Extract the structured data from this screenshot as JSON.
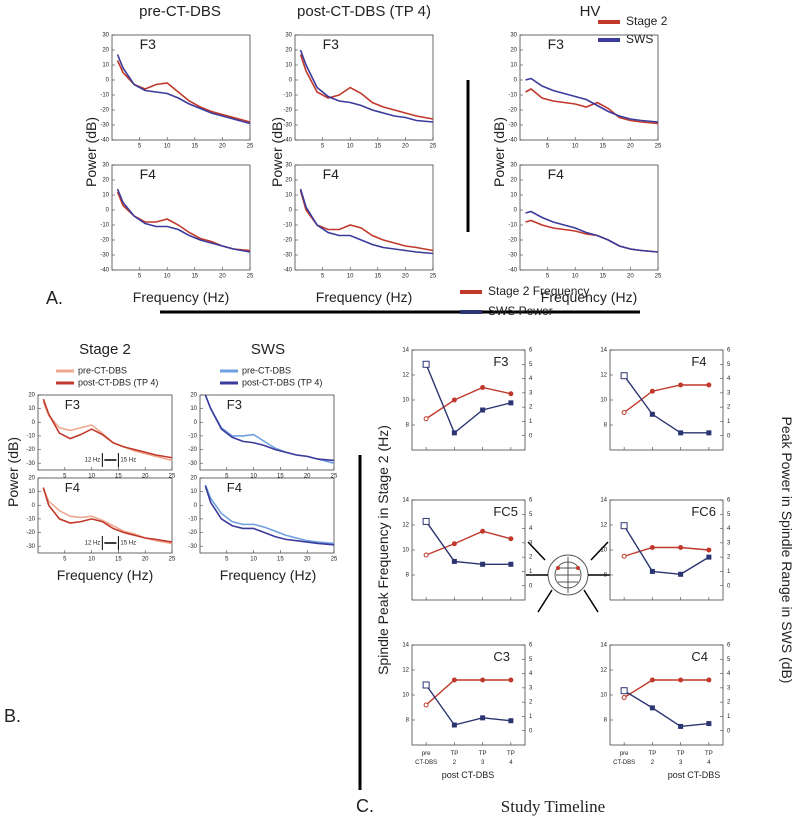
{
  "figure": {
    "panel_a": {
      "label": "A.",
      "headers": [
        "pre-CT-DBS",
        "post-CT-DBS (TP 4)",
        "HV"
      ],
      "ylabel": "Power (dB)",
      "xlabel": "Frequency (Hz)"
    },
    "panel_b": {
      "label": "B.",
      "headers": [
        "Stage 2",
        "SWS"
      ],
      "ylabel": "Power (dB)",
      "xlabel": "Frequency (Hz)"
    },
    "panel_c": {
      "label": "C.",
      "ylabel": "Spindle Peak Frequency in Stage 2 (Hz)",
      "y2label": "Peak Power in Spindle Range in SWS (dB)",
      "xlabel": "Study Timeline",
      "sublabel": "post CT-DBS"
    }
  },
  "chart_data": [
    {
      "type": "line",
      "title": "F3",
      "x": [
        1,
        2,
        4,
        6,
        8,
        10,
        12,
        14,
        16,
        18,
        20,
        22,
        25
      ],
      "xlim": [
        0,
        25
      ],
      "xticks": [
        5,
        10,
        15,
        20,
        25
      ],
      "ylim": [
        -40,
        30
      ],
      "yticks": [
        -40,
        -30,
        -20,
        -10,
        0,
        10,
        20,
        30
      ],
      "series": [
        {
          "name": "Stage 2",
          "color": "#c0392b",
          "values": [
            13,
            5,
            -3,
            -6,
            -3,
            -2,
            -8,
            -14,
            -18,
            -21,
            -23,
            -25,
            -28
          ]
        },
        {
          "name": "SWS",
          "color": "#3b3b9b",
          "values": [
            17,
            8,
            -3,
            -7,
            -8,
            -9,
            -12,
            -16,
            -19,
            -22,
            -24,
            -26,
            -29
          ]
        }
      ]
    },
    {
      "type": "line",
      "title": "F3",
      "x": [
        1,
        2,
        4,
        6,
        8,
        10,
        12,
        14,
        16,
        18,
        20,
        22,
        25
      ],
      "xlim": [
        0,
        25
      ],
      "xticks": [
        5,
        10,
        15,
        20,
        25
      ],
      "ylim": [
        -40,
        30
      ],
      "yticks": [
        -40,
        -30,
        -20,
        -10,
        0,
        10,
        20,
        30
      ],
      "series": [
        {
          "name": "Stage 2",
          "color": "#c0392b",
          "values": [
            17,
            6,
            -8,
            -12,
            -10,
            -5,
            -9,
            -15,
            -18,
            -20,
            -22,
            -24,
            -26
          ]
        },
        {
          "name": "SWS",
          "color": "#3b3b9b",
          "values": [
            20,
            10,
            -5,
            -11,
            -14,
            -15,
            -17,
            -20,
            -22,
            -24,
            -25,
            -27,
            -28
          ]
        }
      ]
    },
    {
      "type": "line",
      "title": "F3",
      "x": [
        1,
        2,
        4,
        6,
        8,
        10,
        12,
        14,
        16,
        18,
        20,
        22,
        25
      ],
      "xlim": [
        0,
        25
      ],
      "xticks": [
        5,
        10,
        15,
        20,
        25
      ],
      "ylim": [
        -40,
        30
      ],
      "yticks": [
        -40,
        -30,
        -20,
        -10,
        0,
        10,
        20,
        30
      ],
      "series": [
        {
          "name": "Stage 2",
          "color": "#c0392b",
          "values": [
            -8,
            -6,
            -12,
            -14,
            -15,
            -16,
            -18,
            -15,
            -19,
            -25,
            -27,
            -28,
            -29
          ]
        },
        {
          "name": "SWS",
          "color": "#3b3b9b",
          "values": [
            0,
            1,
            -4,
            -7,
            -9,
            -11,
            -13,
            -17,
            -21,
            -24,
            -26,
            -27,
            -28
          ]
        }
      ]
    },
    {
      "type": "line",
      "title": "F4",
      "x": [
        1,
        2,
        4,
        6,
        8,
        10,
        12,
        14,
        16,
        18,
        20,
        22,
        25
      ],
      "xlim": [
        0,
        25
      ],
      "xticks": [
        5,
        10,
        15,
        20,
        25
      ],
      "ylim": [
        -40,
        30
      ],
      "yticks": [
        -40,
        -30,
        -20,
        -10,
        0,
        10,
        20,
        30
      ],
      "series": [
        {
          "name": "Stage 2",
          "color": "#c0392b",
          "values": [
            12,
            3,
            -4,
            -8,
            -8,
            -6,
            -10,
            -15,
            -19,
            -21,
            -24,
            -26,
            -27
          ]
        },
        {
          "name": "SWS",
          "color": "#3b3b9b",
          "values": [
            14,
            5,
            -4,
            -9,
            -11,
            -11,
            -13,
            -17,
            -20,
            -22,
            -24,
            -26,
            -28
          ]
        }
      ]
    },
    {
      "type": "line",
      "title": "F4",
      "x": [
        1,
        2,
        4,
        6,
        8,
        10,
        12,
        14,
        16,
        18,
        20,
        22,
        25
      ],
      "xlim": [
        0,
        25
      ],
      "xticks": [
        5,
        10,
        15,
        20,
        25
      ],
      "ylim": [
        -40,
        30
      ],
      "yticks": [
        -40,
        -30,
        -20,
        -10,
        0,
        10,
        20,
        30
      ],
      "series": [
        {
          "name": "Stage 2",
          "color": "#c0392b",
          "values": [
            13,
            0,
            -10,
            -13,
            -13,
            -10,
            -12,
            -17,
            -20,
            -22,
            -24,
            -25,
            -27
          ]
        },
        {
          "name": "SWS",
          "color": "#3b3b9b",
          "values": [
            14,
            2,
            -10,
            -15,
            -17,
            -17,
            -20,
            -23,
            -25,
            -26,
            -27,
            -28,
            -29
          ]
        }
      ]
    },
    {
      "type": "line",
      "title": "F4",
      "x": [
        1,
        2,
        4,
        6,
        8,
        10,
        12,
        14,
        16,
        18,
        20,
        22,
        25
      ],
      "xlim": [
        0,
        25
      ],
      "xticks": [
        5,
        10,
        15,
        20,
        25
      ],
      "ylim": [
        -40,
        30
      ],
      "yticks": [
        -40,
        -30,
        -20,
        -10,
        0,
        10,
        20,
        30
      ],
      "series": [
        {
          "name": "Stage 2",
          "color": "#c0392b",
          "values": [
            -8,
            -7,
            -10,
            -12,
            -13,
            -14,
            -16,
            -17,
            -20,
            -24,
            -26,
            -27,
            -28
          ]
        },
        {
          "name": "SWS",
          "color": "#3b3b9b",
          "values": [
            -2,
            -1,
            -5,
            -8,
            -10,
            -12,
            -15,
            -17,
            -20,
            -24,
            -26,
            -27,
            -28
          ]
        }
      ]
    },
    {
      "type": "line",
      "title": "F3",
      "x": [
        1,
        2,
        4,
        6,
        8,
        10,
        12,
        14,
        16,
        18,
        20,
        22,
        25
      ],
      "xlim": [
        0,
        25
      ],
      "xticks": [
        5,
        10,
        15,
        20,
        25
      ],
      "ylim": [
        -35,
        20
      ],
      "yticks": [
        -30,
        -20,
        -10,
        0,
        10,
        20
      ],
      "annotations": [
        "12 Hz",
        "15 Hz"
      ],
      "series": [
        {
          "name": "pre-CT-DBS",
          "color": "#f0a890",
          "values": [
            15,
            5,
            -4,
            -6,
            -4,
            -2,
            -8,
            -15,
            -18,
            -21,
            -23,
            -25,
            -28
          ]
        },
        {
          "name": "post-CT-DBS (TP 4)",
          "color": "#c0392b",
          "values": [
            17,
            6,
            -8,
            -12,
            -9,
            -5,
            -9,
            -15,
            -18,
            -20,
            -22,
            -24,
            -26
          ]
        }
      ]
    },
    {
      "type": "line",
      "title": "F3",
      "x": [
        1,
        2,
        4,
        6,
        8,
        10,
        12,
        14,
        16,
        18,
        20,
        22,
        25
      ],
      "xlim": [
        0,
        25
      ],
      "xticks": [
        5,
        10,
        15,
        20,
        25
      ],
      "ylim": [
        -35,
        20
      ],
      "yticks": [
        -30,
        -20,
        -10,
        0,
        10,
        20
      ],
      "series": [
        {
          "name": "pre-CT-DBS",
          "color": "#6fa0e0",
          "values": [
            20,
            10,
            -4,
            -10,
            -10,
            -9,
            -14,
            -19,
            -22,
            -24,
            -25,
            -27,
            -30
          ]
        },
        {
          "name": "post-CT-DBS (TP 4)",
          "color": "#3b3b9b",
          "values": [
            20,
            10,
            -5,
            -11,
            -14,
            -15,
            -17,
            -20,
            -22,
            -24,
            -25,
            -27,
            -28
          ]
        }
      ]
    },
    {
      "type": "line",
      "title": "F4",
      "x": [
        1,
        2,
        4,
        6,
        8,
        10,
        12,
        14,
        16,
        18,
        20,
        22,
        25
      ],
      "xlim": [
        0,
        25
      ],
      "xticks": [
        5,
        10,
        15,
        20,
        25
      ],
      "ylim": [
        -35,
        20
      ],
      "yticks": [
        -30,
        -20,
        -10,
        0,
        10,
        20
      ],
      "annotations": [
        "12 Hz",
        "15 Hz"
      ],
      "series": [
        {
          "name": "pre-CT-DBS",
          "color": "#f0a890",
          "values": [
            12,
            3,
            -4,
            -8,
            -9,
            -8,
            -11,
            -15,
            -19,
            -21,
            -24,
            -26,
            -28
          ]
        },
        {
          "name": "post-CT-DBS (TP 4)",
          "color": "#c0392b",
          "values": [
            13,
            0,
            -10,
            -13,
            -12,
            -10,
            -12,
            -17,
            -20,
            -22,
            -24,
            -25,
            -27
          ]
        }
      ]
    },
    {
      "type": "line",
      "title": "F4",
      "x": [
        1,
        2,
        4,
        6,
        8,
        10,
        12,
        14,
        16,
        18,
        20,
        22,
        25
      ],
      "xlim": [
        0,
        25
      ],
      "xticks": [
        5,
        10,
        15,
        20,
        25
      ],
      "ylim": [
        -35,
        20
      ],
      "yticks": [
        -30,
        -20,
        -10,
        0,
        10,
        20
      ],
      "series": [
        {
          "name": "pre-CT-DBS",
          "color": "#6fa0e0",
          "values": [
            15,
            5,
            -6,
            -12,
            -14,
            -14,
            -16,
            -19,
            -22,
            -24,
            -26,
            -27,
            -28
          ]
        },
        {
          "name": "post-CT-DBS (TP 4)",
          "color": "#3b3b9b",
          "values": [
            14,
            2,
            -10,
            -15,
            -17,
            -17,
            -20,
            -23,
            -25,
            -26,
            -27,
            -28,
            -29
          ]
        }
      ]
    },
    {
      "type": "timeline",
      "title": "F3",
      "categories": [
        null,
        null,
        null,
        null
      ],
      "ylim": [
        6,
        14
      ],
      "yticks": [
        8,
        10,
        12,
        14
      ],
      "y2lim": [
        -1,
        6
      ],
      "y2ticks": [
        0,
        1,
        2,
        3,
        4,
        5,
        6
      ],
      "series": [
        {
          "name": "Stage 2 Frequency",
          "color": "#c0392b",
          "values": [
            8.5,
            10,
            11,
            10.5
          ]
        },
        {
          "name": "SWS Power",
          "color": "#2b3570",
          "axis": "y2",
          "values": [
            5,
            0.2,
            1.8,
            2.3
          ]
        }
      ]
    },
    {
      "type": "timeline",
      "title": "F4",
      "categories": [
        null,
        null,
        null,
        null
      ],
      "ylim": [
        6,
        14
      ],
      "yticks": [
        8,
        10,
        12,
        14
      ],
      "y2lim": [
        -1,
        6
      ],
      "y2ticks": [
        0,
        1,
        2,
        3,
        4,
        5,
        6
      ],
      "series": [
        {
          "name": "Stage 2 Frequency",
          "color": "#c0392b",
          "values": [
            9,
            10.7,
            11.2,
            11.2
          ]
        },
        {
          "name": "SWS Power",
          "color": "#2b3570",
          "axis": "y2",
          "values": [
            4.2,
            1.5,
            0.2,
            0.2
          ]
        }
      ]
    },
    {
      "type": "timeline",
      "title": "FC5",
      "categories": [
        null,
        null,
        null,
        null
      ],
      "ylim": [
        6,
        14
      ],
      "yticks": [
        8,
        10,
        12,
        14
      ],
      "y2lim": [
        -1,
        6
      ],
      "y2ticks": [
        0,
        1,
        2,
        3,
        4,
        5,
        6
      ],
      "series": [
        {
          "name": "Stage 2 Frequency",
          "color": "#c0392b",
          "values": [
            9.6,
            10.5,
            11.5,
            10.9
          ]
        },
        {
          "name": "SWS Power",
          "color": "#2b3570",
          "axis": "y2",
          "values": [
            4.5,
            1.7,
            1.5,
            1.5
          ]
        }
      ]
    },
    {
      "type": "timeline",
      "title": "FC6",
      "categories": [
        null,
        null,
        null,
        null
      ],
      "ylim": [
        6,
        14
      ],
      "yticks": [
        8,
        10,
        12,
        14
      ],
      "y2lim": [
        -1,
        6
      ],
      "y2ticks": [
        0,
        1,
        2,
        3,
        4,
        5,
        6
      ],
      "series": [
        {
          "name": "Stage 2 Frequency",
          "color": "#c0392b",
          "values": [
            9.5,
            10.2,
            10.2,
            10
          ]
        },
        {
          "name": "SWS Power",
          "color": "#2b3570",
          "axis": "y2",
          "values": [
            4.2,
            1,
            0.8,
            2
          ]
        }
      ]
    },
    {
      "type": "timeline",
      "title": "C3",
      "categories": [
        "pre CT-DBS",
        "TP 2",
        "TP 3",
        "TP 4"
      ],
      "ylim": [
        6,
        14
      ],
      "yticks": [
        8,
        10,
        12,
        14
      ],
      "y2lim": [
        -1,
        6
      ],
      "y2ticks": [
        0,
        1,
        2,
        3,
        4,
        5,
        6
      ],
      "series": [
        {
          "name": "Stage 2 Frequency",
          "color": "#c0392b",
          "values": [
            9.2,
            11.2,
            11.2,
            11.2
          ]
        },
        {
          "name": "SWS Power",
          "color": "#2b3570",
          "axis": "y2",
          "values": [
            3.2,
            0.4,
            0.9,
            0.7
          ]
        }
      ]
    },
    {
      "type": "timeline",
      "title": "C4",
      "categories": [
        "pre CT-DBS",
        "TP 2",
        "TP 3",
        "TP 4"
      ],
      "ylim": [
        6,
        14
      ],
      "yticks": [
        8,
        10,
        12,
        14
      ],
      "y2lim": [
        -1,
        6
      ],
      "y2ticks": [
        0,
        1,
        2,
        3,
        4,
        5,
        6
      ],
      "series": [
        {
          "name": "Stage 2 Frequency",
          "color": "#c0392b",
          "values": [
            9.8,
            11.2,
            11.2,
            11.2
          ]
        },
        {
          "name": "SWS Power",
          "color": "#2b3570",
          "axis": "y2",
          "values": [
            2.8,
            1.6,
            0.3,
            0.5
          ]
        }
      ]
    }
  ]
}
